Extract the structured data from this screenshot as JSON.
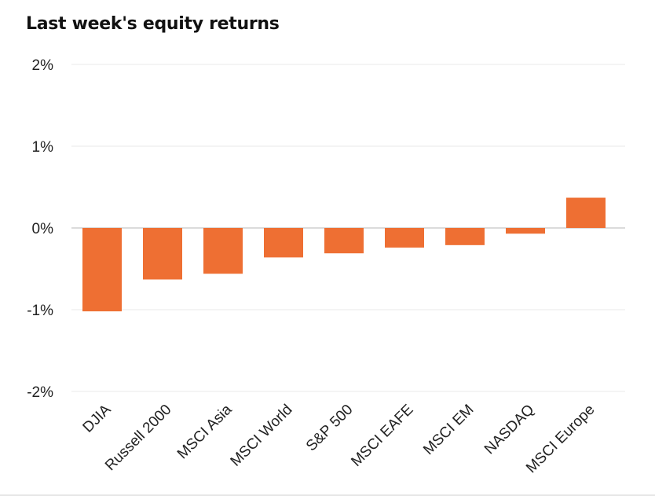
{
  "title": "Last week's equity returns",
  "colors": {
    "bar": "#EE6F33",
    "grid": "#e8e8e8",
    "zero_line": "#cfcfcf",
    "text": "#222222"
  },
  "chart_data": {
    "type": "bar",
    "title": "Last week's equity returns",
    "xlabel": "",
    "ylabel": "",
    "categories": [
      "DJIA",
      "Russell 2000",
      "MSCI Asia",
      "MSCI World",
      "S&P 500",
      "MSCI EAFE",
      "MSCI EM",
      "NASDAQ",
      "MSCI Europe"
    ],
    "values": [
      -1.02,
      -0.63,
      -0.56,
      -0.36,
      -0.31,
      -0.24,
      -0.21,
      -0.07,
      0.37
    ],
    "value_unit": "%",
    "ylim": [
      -2,
      2
    ],
    "yticks": [
      2,
      1,
      0,
      -1,
      -2
    ],
    "ytick_labels": [
      "2%",
      "1%",
      "0%",
      "-1%",
      "-2%"
    ],
    "grid": true,
    "legend": "none"
  }
}
